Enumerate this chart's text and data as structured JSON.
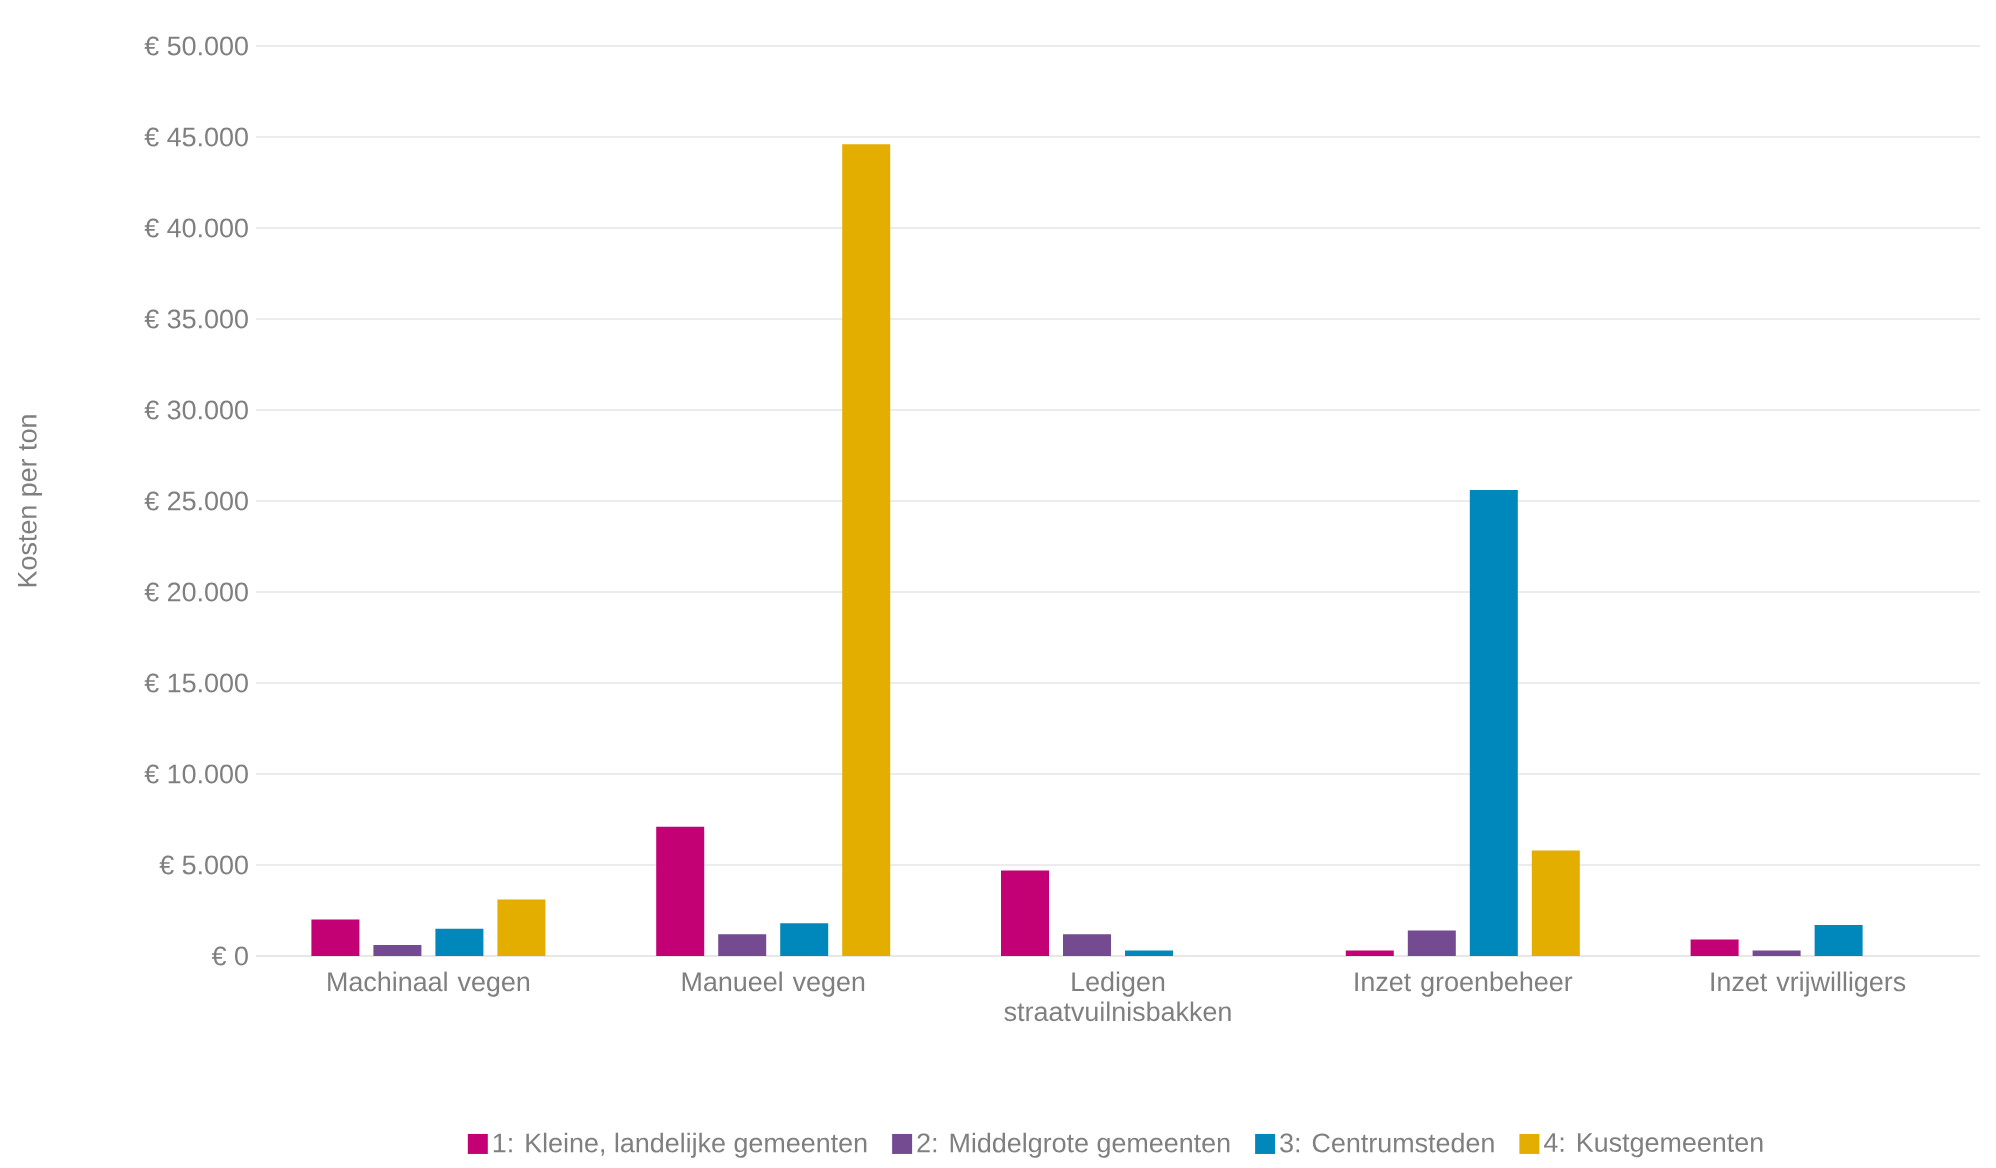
{
  "chart_data": {
    "type": "bar",
    "ylabel": "Kosten per ton",
    "categories": [
      "Machinaal vegen",
      "Manueel vegen",
      "Ledigen straatvuilnisbakken",
      "Inzet groenbeheer",
      "Inzet vrijwilligers"
    ],
    "series": [
      {
        "name": "1: Kleine, landelijke gemeenten",
        "color": "#c40075",
        "values": [
          2000,
          7100,
          4700,
          300,
          900
        ]
      },
      {
        "name": "2: Middelgrote gemeenten",
        "color": "#744b91",
        "values": [
          600,
          1200,
          1200,
          1400,
          300
        ]
      },
      {
        "name": "3: Centrumsteden",
        "color": "#0088bd",
        "values": [
          1500,
          1800,
          300,
          25600,
          1700
        ]
      },
      {
        "name": "4: Kustgemeenten",
        "color": "#e3ae00",
        "values": [
          3100,
          44600,
          null,
          5800,
          null
        ]
      }
    ],
    "ylim": [
      0,
      50000
    ],
    "yticks": [
      {
        "value": 0,
        "label": "€ 0"
      },
      {
        "value": 5000,
        "label": "€ 5.000"
      },
      {
        "value": 10000,
        "label": "€ 10.000"
      },
      {
        "value": 15000,
        "label": "€ 15.000"
      },
      {
        "value": 20000,
        "label": "€ 20.000"
      },
      {
        "value": 25000,
        "label": "€ 25.000"
      },
      {
        "value": 30000,
        "label": "€ 30.000"
      },
      {
        "value": 35000,
        "label": "€ 35.000"
      },
      {
        "value": 40000,
        "label": "€ 40.000"
      },
      {
        "value": 45000,
        "label": "€ 45.000"
      },
      {
        "value": 50000,
        "label": "€ 50.000"
      }
    ],
    "grid": "y",
    "legend": "bottom"
  }
}
